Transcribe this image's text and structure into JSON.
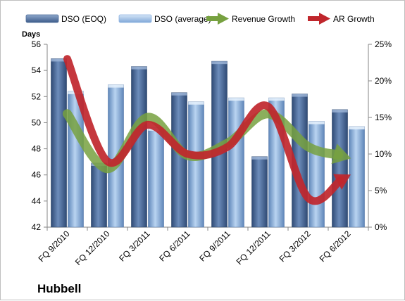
{
  "chart_data": {
    "type": "bar",
    "company": "Hubbell",
    "y_left_label": "Days",
    "categories": [
      "FQ 9/2010",
      "FQ 12/2010",
      "FQ 3/2011",
      "FQ 6/2011",
      "FQ 9/2011",
      "FQ 12/2011",
      "FQ 3/2012",
      "FQ 6/2012"
    ],
    "left_axis": {
      "min": 42,
      "max": 56,
      "ticks": [
        "42",
        "44",
        "46",
        "48",
        "50",
        "52",
        "54",
        "56"
      ]
    },
    "right_axis": {
      "min": 0,
      "max": 25,
      "ticks": [
        "0%",
        "5%",
        "10%",
        "15%",
        "20%",
        "25%"
      ]
    },
    "series": [
      {
        "name": "DSO (EOQ)",
        "kind": "bar",
        "axis": "left",
        "color": "#4f6d9a",
        "values": [
          54.9,
          46.9,
          54.3,
          52.3,
          54.7,
          47.4,
          52.2,
          51.0
        ]
      },
      {
        "name": "DSO (average)",
        "kind": "bar",
        "axis": "left",
        "color": "#8db3e2",
        "values": [
          52.4,
          52.9,
          49.6,
          51.6,
          51.9,
          51.9,
          50.1,
          49.7
        ]
      },
      {
        "name": "Revenue Growth",
        "kind": "line",
        "axis": "right",
        "color": "#77a140",
        "values": [
          15.5,
          8.0,
          15.0,
          9.8,
          11.5,
          15.5,
          11.0,
          9.5
        ]
      },
      {
        "name": "AR Growth",
        "kind": "line",
        "axis": "right",
        "color": "#c0262c",
        "values": [
          23.0,
          9.0,
          14.0,
          10.0,
          11.0,
          16.5,
          4.0,
          7.0
        ]
      }
    ],
    "grid": false,
    "legend_position": "top"
  }
}
